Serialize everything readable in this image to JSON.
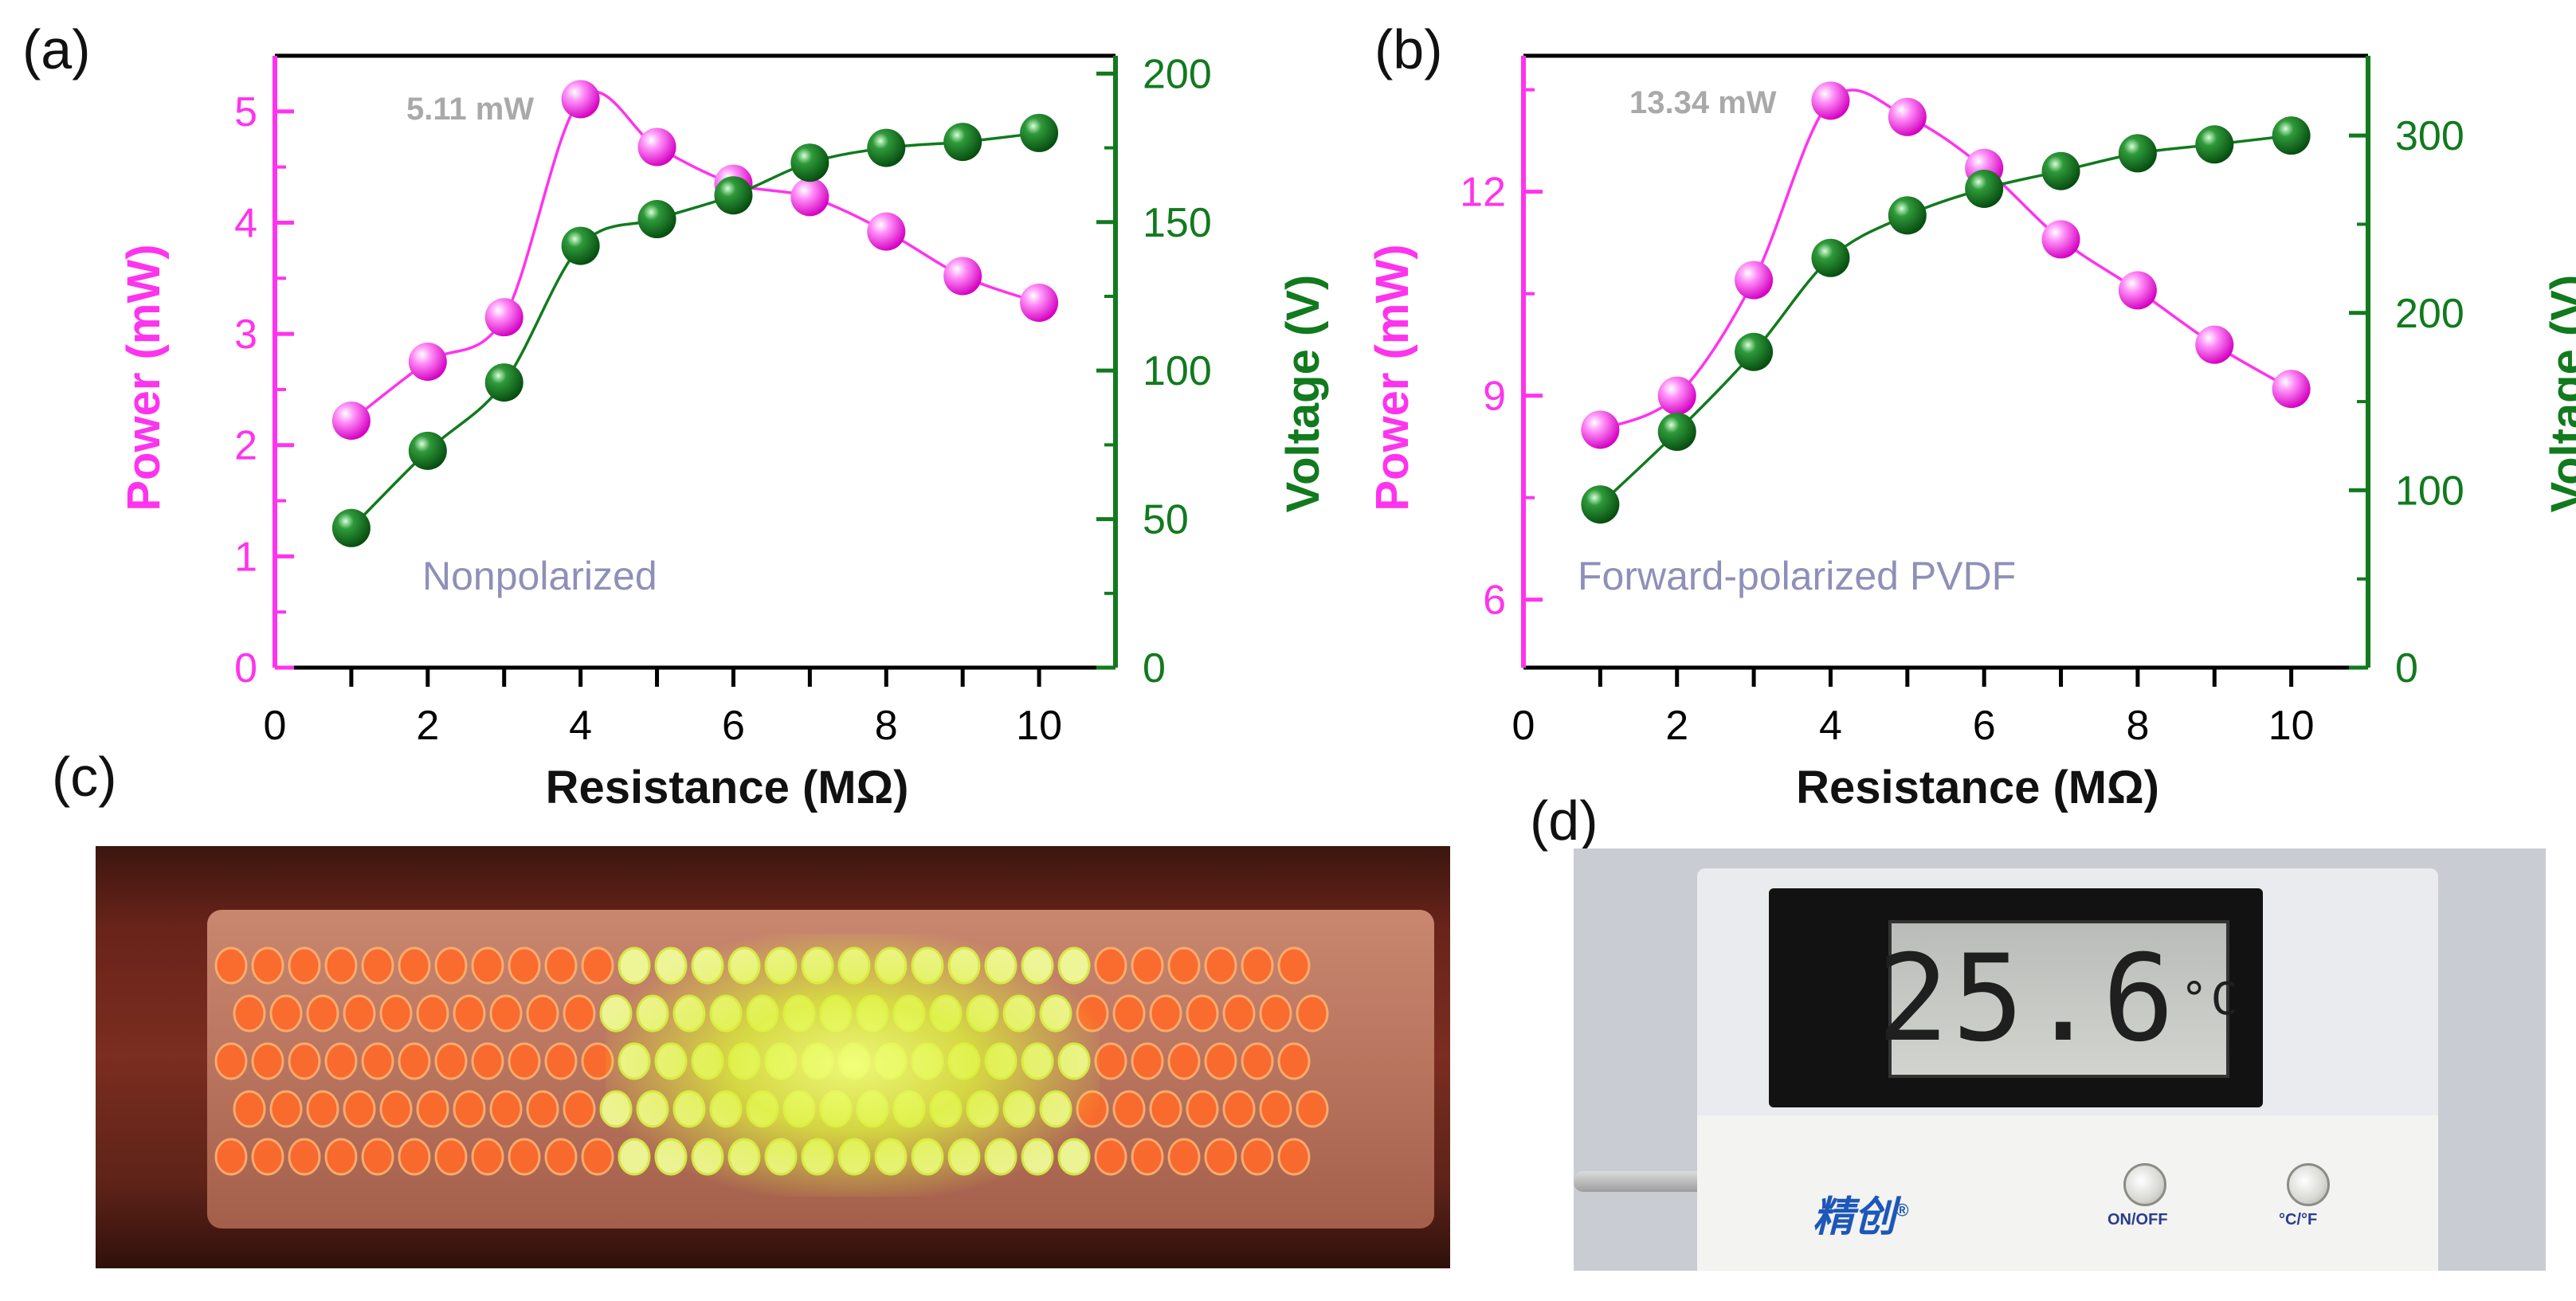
{
  "panels": {
    "a": "(a)",
    "b": "(b)",
    "c": "(c)",
    "d": "(d)"
  },
  "colors": {
    "power": "#ff33ee",
    "voltage": "#117a1e",
    "annotation": "#a9a9a9",
    "label": "#8f90b8"
  },
  "chart_data": [
    {
      "type": "line",
      "panel": "a",
      "title": "",
      "xlabel": "Resistance (MΩ)",
      "ylabel": "Power (mW)",
      "y2label": "Voltage (V)",
      "xlim": [
        0,
        11
      ],
      "ylim": [
        0,
        5.5
      ],
      "y2lim": [
        0,
        206
      ],
      "xticks": [
        0,
        2,
        4,
        6,
        8,
        10
      ],
      "yticks": [
        0,
        1,
        2,
        3,
        4,
        5
      ],
      "y2ticks": [
        0,
        50,
        100,
        150,
        200
      ],
      "inner_label": "Nonpolarized",
      "annotation": "5.11 mW",
      "series": [
        {
          "axis": "left",
          "x": [
            1,
            2,
            3,
            4,
            5,
            6,
            7,
            8,
            9,
            10
          ],
          "values": [
            2.22,
            2.75,
            3.15,
            5.11,
            4.68,
            4.35,
            4.23,
            3.92,
            3.52,
            3.28
          ]
        },
        {
          "axis": "right",
          "x": [
            1,
            2,
            3,
            4,
            5,
            6,
            7,
            8,
            9,
            10
          ],
          "values": [
            47,
            73,
            96,
            142,
            151,
            159,
            170,
            175,
            177,
            180
          ]
        }
      ]
    },
    {
      "type": "line",
      "panel": "b",
      "title": "",
      "xlabel": "Resistance (MΩ)",
      "ylabel": "Power (mW)",
      "y2label": "Voltage (V)",
      "xlim": [
        0,
        11
      ],
      "ylim": [
        5,
        14
      ],
      "y2lim": [
        0,
        345
      ],
      "xticks": [
        0,
        2,
        4,
        6,
        8,
        10
      ],
      "yticks": [
        6,
        9,
        12
      ],
      "y2ticks": [
        0,
        100,
        200,
        300
      ],
      "inner_label": "Forward-polarized PVDF",
      "annotation": "13.34 mW",
      "series": [
        {
          "axis": "left",
          "x": [
            1,
            2,
            3,
            4,
            5,
            6,
            7,
            8,
            9,
            10
          ],
          "values": [
            8.5,
            9.0,
            10.7,
            13.34,
            13.1,
            12.35,
            11.3,
            10.55,
            9.75,
            9.1
          ]
        },
        {
          "axis": "right",
          "x": [
            1,
            2,
            3,
            4,
            5,
            6,
            7,
            8,
            9,
            10
          ],
          "values": [
            92,
            133,
            178,
            231,
            255,
            270,
            280,
            290,
            295,
            300
          ]
        }
      ]
    }
  ],
  "thermometer": {
    "reading": "25.6",
    "unit": "°C",
    "brand": "精创",
    "registered": "®",
    "button_on_off": "ON/OFF",
    "button_unit": "°C/°F"
  }
}
